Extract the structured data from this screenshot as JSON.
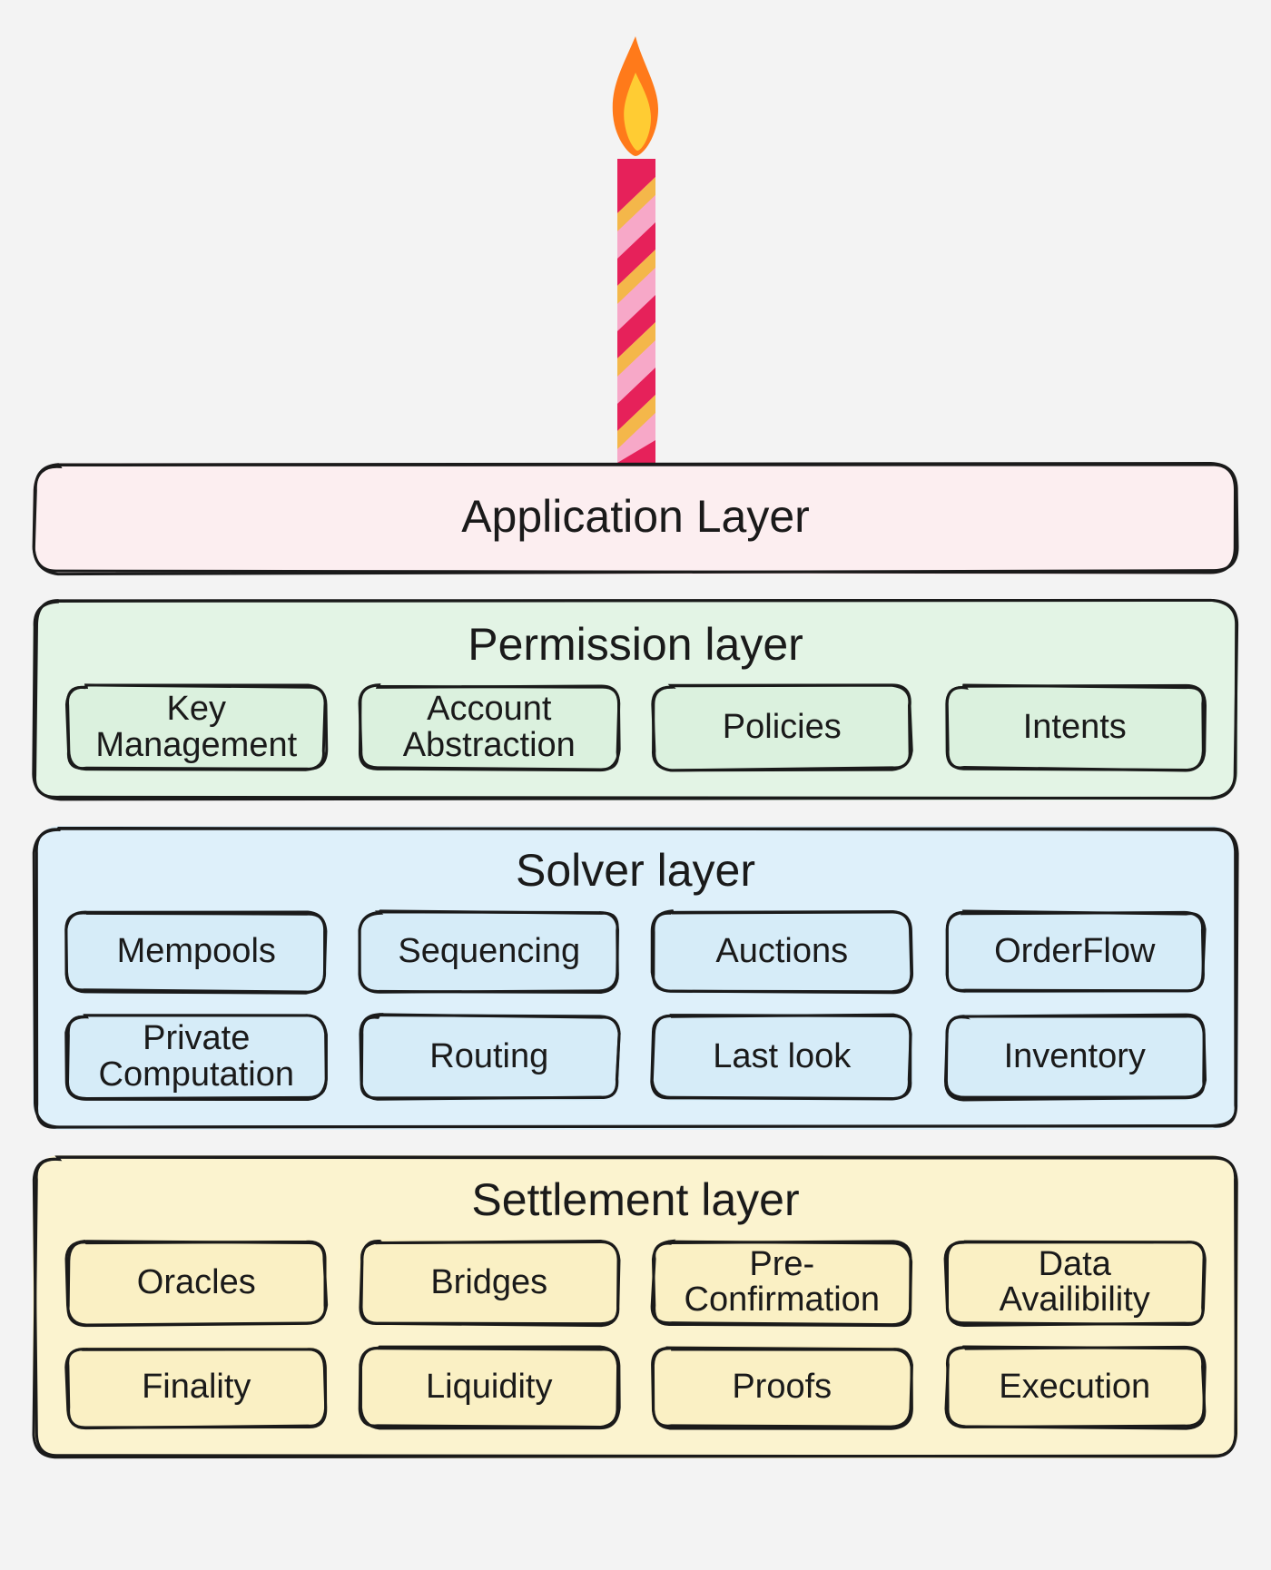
{
  "background_color": "#f3f3f3",
  "border_color": "#1a1a1a",
  "text_color": "#1a1a1a",
  "title_fontsize": 50,
  "pill_fontsize": 38,
  "candle": {
    "flame_outer": "#ff7a1a",
    "flame_inner": "#ffcc33",
    "stripe_a": "#e6215a",
    "stripe_b": "#f7a8c8",
    "stripe_c": "#f4b74a"
  },
  "layers": [
    {
      "id": "application",
      "title": "Application Layer",
      "bg": "#fceef0",
      "pill_bg": "#fceef0",
      "items": []
    },
    {
      "id": "permission",
      "title": "Permission layer",
      "bg": "#e3f4e5",
      "pill_bg": "#dbf1de",
      "items": [
        "Key\nManagement",
        "Account\nAbstraction",
        "Policies",
        "Intents"
      ]
    },
    {
      "id": "solver",
      "title": "Solver layer",
      "bg": "#def0fa",
      "pill_bg": "#d6ecf8",
      "items": [
        "Mempools",
        "Sequencing",
        "Auctions",
        "OrderFlow",
        "Private\nComputation",
        "Routing",
        "Last look",
        "Inventory"
      ]
    },
    {
      "id": "settlement",
      "title": "Settlement layer",
      "bg": "#fbf3cf",
      "pill_bg": "#faf0c4",
      "items": [
        "Oracles",
        "Bridges",
        "Pre-\nConfirmation",
        "Data\nAvailibility",
        "Finality",
        "Liquidity",
        "Proofs",
        "Execution"
      ]
    }
  ]
}
